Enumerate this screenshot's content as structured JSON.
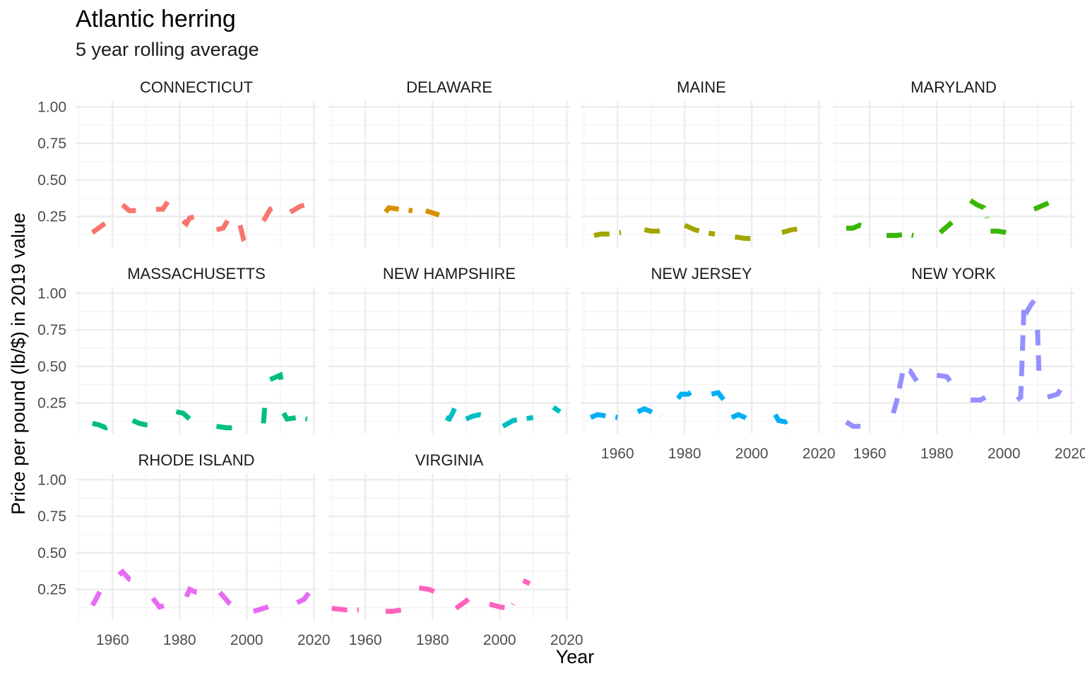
{
  "chart_data": {
    "type": "line",
    "title": "Atlantic herring",
    "subtitle": "5 year rolling average",
    "xlabel": "Year",
    "ylabel": "Price per pound (lb/$) in 2019 value",
    "xlim": [
      1949,
      2021
    ],
    "ylim": [
      0.04,
      1.04
    ],
    "x_ticks": [
      1960,
      1980,
      2000,
      2020
    ],
    "x_tick_labels": [
      "1960",
      "1980",
      "2000",
      "2020"
    ],
    "y_ticks": [
      0.25,
      0.5,
      0.75,
      1.0
    ],
    "y_tick_labels": [
      "0.25",
      "0.50",
      "0.75",
      "1.00"
    ],
    "grid": true,
    "legend": "none",
    "facets": [
      {
        "name": "CONNECTICUT",
        "color": "#F8766D",
        "segments": [
          [
            [
              1954,
              0.14
            ],
            [
              1957,
              0.19
            ],
            [
              1960,
              0.24
            ]
          ],
          [
            [
              1963,
              0.33
            ],
            [
              1965,
              0.29
            ],
            [
              1967,
              0.29
            ],
            [
              1969,
              0.26
            ]
          ],
          [
            [
              1973,
              0.3
            ],
            [
              1975,
              0.3
            ],
            [
              1977,
              0.37
            ]
          ],
          [
            [
              1981,
              0.22
            ],
            [
              1982,
              0.2
            ],
            [
              1983,
              0.24
            ],
            [
              1985,
              0.25
            ]
          ],
          [
            [
              1991,
              0.16
            ],
            [
              1993,
              0.17
            ],
            [
              1995,
              0.25
            ]
          ],
          [
            [
              1998,
              0.19
            ],
            [
              1999,
              0.1
            ],
            [
              2001,
              0.13
            ]
          ],
          [
            [
              2005,
              0.22
            ],
            [
              2007,
              0.3
            ],
            [
              2010,
              0.34
            ]
          ],
          [
            [
              2013,
              0.28
            ],
            [
              2016,
              0.32
            ],
            [
              2019,
              0.34
            ]
          ]
        ]
      },
      {
        "name": "DELAWARE",
        "color": "#D89000",
        "segments": [
          [
            [
              1966,
              0.28
            ],
            [
              1967,
              0.31
            ],
            [
              1970,
              0.3
            ],
            [
              1974,
              0.29
            ]
          ],
          [
            [
              1978,
              0.29
            ],
            [
              1982,
              0.26
            ]
          ]
        ]
      },
      {
        "name": "MAINE",
        "color": "#A3A500",
        "segments": [
          [
            [
              1953,
              0.12
            ],
            [
              1955,
              0.13
            ],
            [
              1958,
              0.13
            ],
            [
              1961,
              0.14
            ]
          ],
          [
            [
              1968,
              0.16
            ],
            [
              1970,
              0.15
            ],
            [
              1972,
              0.15
            ],
            [
              1974,
              0.16
            ]
          ],
          [
            [
              1980,
              0.19
            ],
            [
              1983,
              0.16
            ],
            [
              1986,
              0.14
            ],
            [
              1989,
              0.13
            ]
          ],
          [
            [
              1995,
              0.11
            ],
            [
              1998,
              0.1
            ],
            [
              2002,
              0.1
            ]
          ],
          [
            [
              2009,
              0.14
            ],
            [
              2012,
              0.16
            ],
            [
              2016,
              0.17
            ]
          ]
        ]
      },
      {
        "name": "MARYLAND",
        "color": "#39B600",
        "segments": [
          [
            [
              1953,
              0.17
            ],
            [
              1955,
              0.17
            ],
            [
              1957,
              0.19
            ],
            [
              1960,
              0.17
            ]
          ],
          [
            [
              1965,
              0.12
            ],
            [
              1968,
              0.12
            ],
            [
              1971,
              0.13
            ],
            [
              1973,
              0.12
            ]
          ],
          [
            [
              1981,
              0.14
            ],
            [
              1983,
              0.18
            ],
            [
              1986,
              0.24
            ]
          ],
          [
            [
              1990,
              0.36
            ],
            [
              1992,
              0.33
            ],
            [
              1994,
              0.31
            ],
            [
              1995,
              0.24
            ]
          ],
          [
            [
              1996,
              0.15
            ],
            [
              1998,
              0.15
            ],
            [
              2001,
              0.14
            ],
            [
              2003,
              0.17
            ]
          ],
          [
            [
              2009,
              0.3
            ],
            [
              2012,
              0.33
            ],
            [
              2015,
              0.36
            ]
          ]
        ]
      },
      {
        "name": "MASSACHUSETTS",
        "color": "#00BF7D",
        "segments": [
          [
            [
              1954,
              0.11
            ],
            [
              1956,
              0.1
            ],
            [
              1958,
              0.08
            ],
            [
              1960,
              0.1
            ]
          ],
          [
            [
              1966,
              0.13
            ],
            [
              1968,
              0.11
            ],
            [
              1970,
              0.1
            ],
            [
              1972,
              0.1
            ]
          ],
          [
            [
              1979,
              0.19
            ],
            [
              1981,
              0.18
            ],
            [
              1984,
              0.12
            ]
          ],
          [
            [
              1991,
              0.09
            ],
            [
              1994,
              0.08
            ],
            [
              1997,
              0.08
            ]
          ],
          [
            [
              2005,
              0.11
            ],
            [
              2005.5,
              0.26
            ]
          ],
          [
            [
              2007,
              0.41
            ],
            [
              2010,
              0.44
            ],
            [
              2010.5,
              0.37
            ]
          ],
          [
            [
              2011,
              0.18
            ],
            [
              2012,
              0.14
            ],
            [
              2015,
              0.15
            ],
            [
              2018,
              0.14
            ]
          ]
        ]
      },
      {
        "name": "NEW HAMPSHIRE",
        "color": "#00BFC4",
        "segments": [
          [
            [
              1984,
              0.15
            ],
            [
              1985,
              0.14
            ],
            [
              1986,
              0.18
            ],
            [
              1987,
              0.24
            ]
          ],
          [
            [
              1990,
              0.14
            ],
            [
              1992,
              0.16
            ],
            [
              1994,
              0.17
            ],
            [
              1996,
              0.16
            ]
          ],
          [
            [
              2001,
              0.09
            ],
            [
              2004,
              0.13
            ],
            [
              2007,
              0.14
            ],
            [
              2010,
              0.15
            ]
          ],
          [
            [
              2016,
              0.22
            ],
            [
              2018,
              0.19
            ]
          ]
        ]
      },
      {
        "name": "NEW JERSEY",
        "color": "#00B0F6",
        "segments": [
          [
            [
              1952,
              0.15
            ],
            [
              1954,
              0.17
            ],
            [
              1957,
              0.16
            ],
            [
              1960,
              0.15
            ]
          ],
          [
            [
              1966,
              0.19
            ],
            [
              1968,
              0.21
            ],
            [
              1970,
              0.19
            ],
            [
              1973,
              0.16
            ]
          ],
          [
            [
              1978,
              0.28
            ],
            [
              1979,
              0.31
            ],
            [
              1981,
              0.31
            ],
            [
              1983,
              0.34
            ]
          ],
          [
            [
              1988,
              0.31
            ],
            [
              1990,
              0.32
            ],
            [
              1992,
              0.26
            ]
          ],
          [
            [
              1994,
              0.15
            ],
            [
              1996,
              0.17
            ],
            [
              1998,
              0.15
            ],
            [
              2000,
              0.12
            ]
          ],
          [
            [
              2007,
              0.17
            ],
            [
              2008,
              0.13
            ],
            [
              2010,
              0.12
            ],
            [
              2012,
              0.15
            ]
          ]
        ]
      },
      {
        "name": "NEW YORK",
        "color": "#9590FF",
        "segments": [
          [
            [
              1953,
              0.12
            ],
            [
              1955,
              0.09
            ],
            [
              1958,
              0.09
            ],
            [
              1960,
              0.09
            ]
          ],
          [
            [
              1967,
              0.18
            ],
            [
              1968,
              0.26
            ],
            [
              1970,
              0.48
            ],
            [
              1972,
              0.47
            ],
            [
              1974,
              0.4
            ]
          ],
          [
            [
              1980,
              0.44
            ],
            [
              1983,
              0.43
            ],
            [
              1985,
              0.36
            ]
          ],
          [
            [
              1990,
              0.27
            ],
            [
              1993,
              0.27
            ],
            [
              1996,
              0.31
            ]
          ],
          [
            [
              2004,
              0.27
            ],
            [
              2005,
              0.29
            ],
            [
              2005.5,
              0.6
            ],
            [
              2006,
              0.92
            ],
            [
              2007,
              0.88
            ],
            [
              2008,
              0.92
            ],
            [
              2009,
              0.95
            ]
          ],
          [
            [
              2010,
              0.75
            ],
            [
              2010.5,
              0.42
            ]
          ],
          [
            [
              2013,
              0.29
            ],
            [
              2016,
              0.31
            ],
            [
              2018,
              0.39
            ]
          ]
        ]
      },
      {
        "name": "RHODE ISLAND",
        "color": "#E76BF3",
        "segments": [
          [
            [
              1954,
              0.14
            ],
            [
              1955,
              0.18
            ],
            [
              1957,
              0.27
            ]
          ],
          [
            [
              1962,
              0.35
            ],
            [
              1963,
              0.37
            ],
            [
              1965,
              0.32
            ],
            [
              1968,
              0.3
            ]
          ],
          [
            [
              1972,
              0.19
            ],
            [
              1974,
              0.13
            ],
            [
              1977,
              0.15
            ]
          ],
          [
            [
              1982,
              0.2
            ],
            [
              1983,
              0.25
            ],
            [
              1985,
              0.23
            ],
            [
              1988,
              0.23
            ]
          ],
          [
            [
              1992,
              0.23
            ],
            [
              1995,
              0.15
            ],
            [
              1997,
              0.11
            ]
          ],
          [
            [
              2002,
              0.1
            ],
            [
              2005,
              0.12
            ],
            [
              2009,
              0.15
            ]
          ],
          [
            [
              2015,
              0.16
            ],
            [
              2017,
              0.18
            ],
            [
              2019,
              0.24
            ]
          ]
        ]
      },
      {
        "name": "VIRGINIA",
        "color": "#FF62BC",
        "segments": [
          [
            [
              1950,
              0.12
            ],
            [
              1954,
              0.11
            ],
            [
              1958,
              0.11
            ]
          ],
          [
            [
              1966,
              0.1
            ],
            [
              1968,
              0.1
            ],
            [
              1971,
              0.11
            ],
            [
              1973,
              0.11
            ]
          ],
          [
            [
              1976,
              0.26
            ],
            [
              1979,
              0.25
            ],
            [
              1982,
              0.22
            ]
          ],
          [
            [
              1987,
              0.12
            ],
            [
              1990,
              0.17
            ],
            [
              1992,
              0.21
            ]
          ],
          [
            [
              1997,
              0.15
            ],
            [
              2000,
              0.13
            ],
            [
              2003,
              0.12
            ],
            [
              2004,
              0.15
            ]
          ],
          [
            [
              2007,
              0.31
            ],
            [
              2009,
              0.29
            ]
          ]
        ]
      }
    ]
  }
}
